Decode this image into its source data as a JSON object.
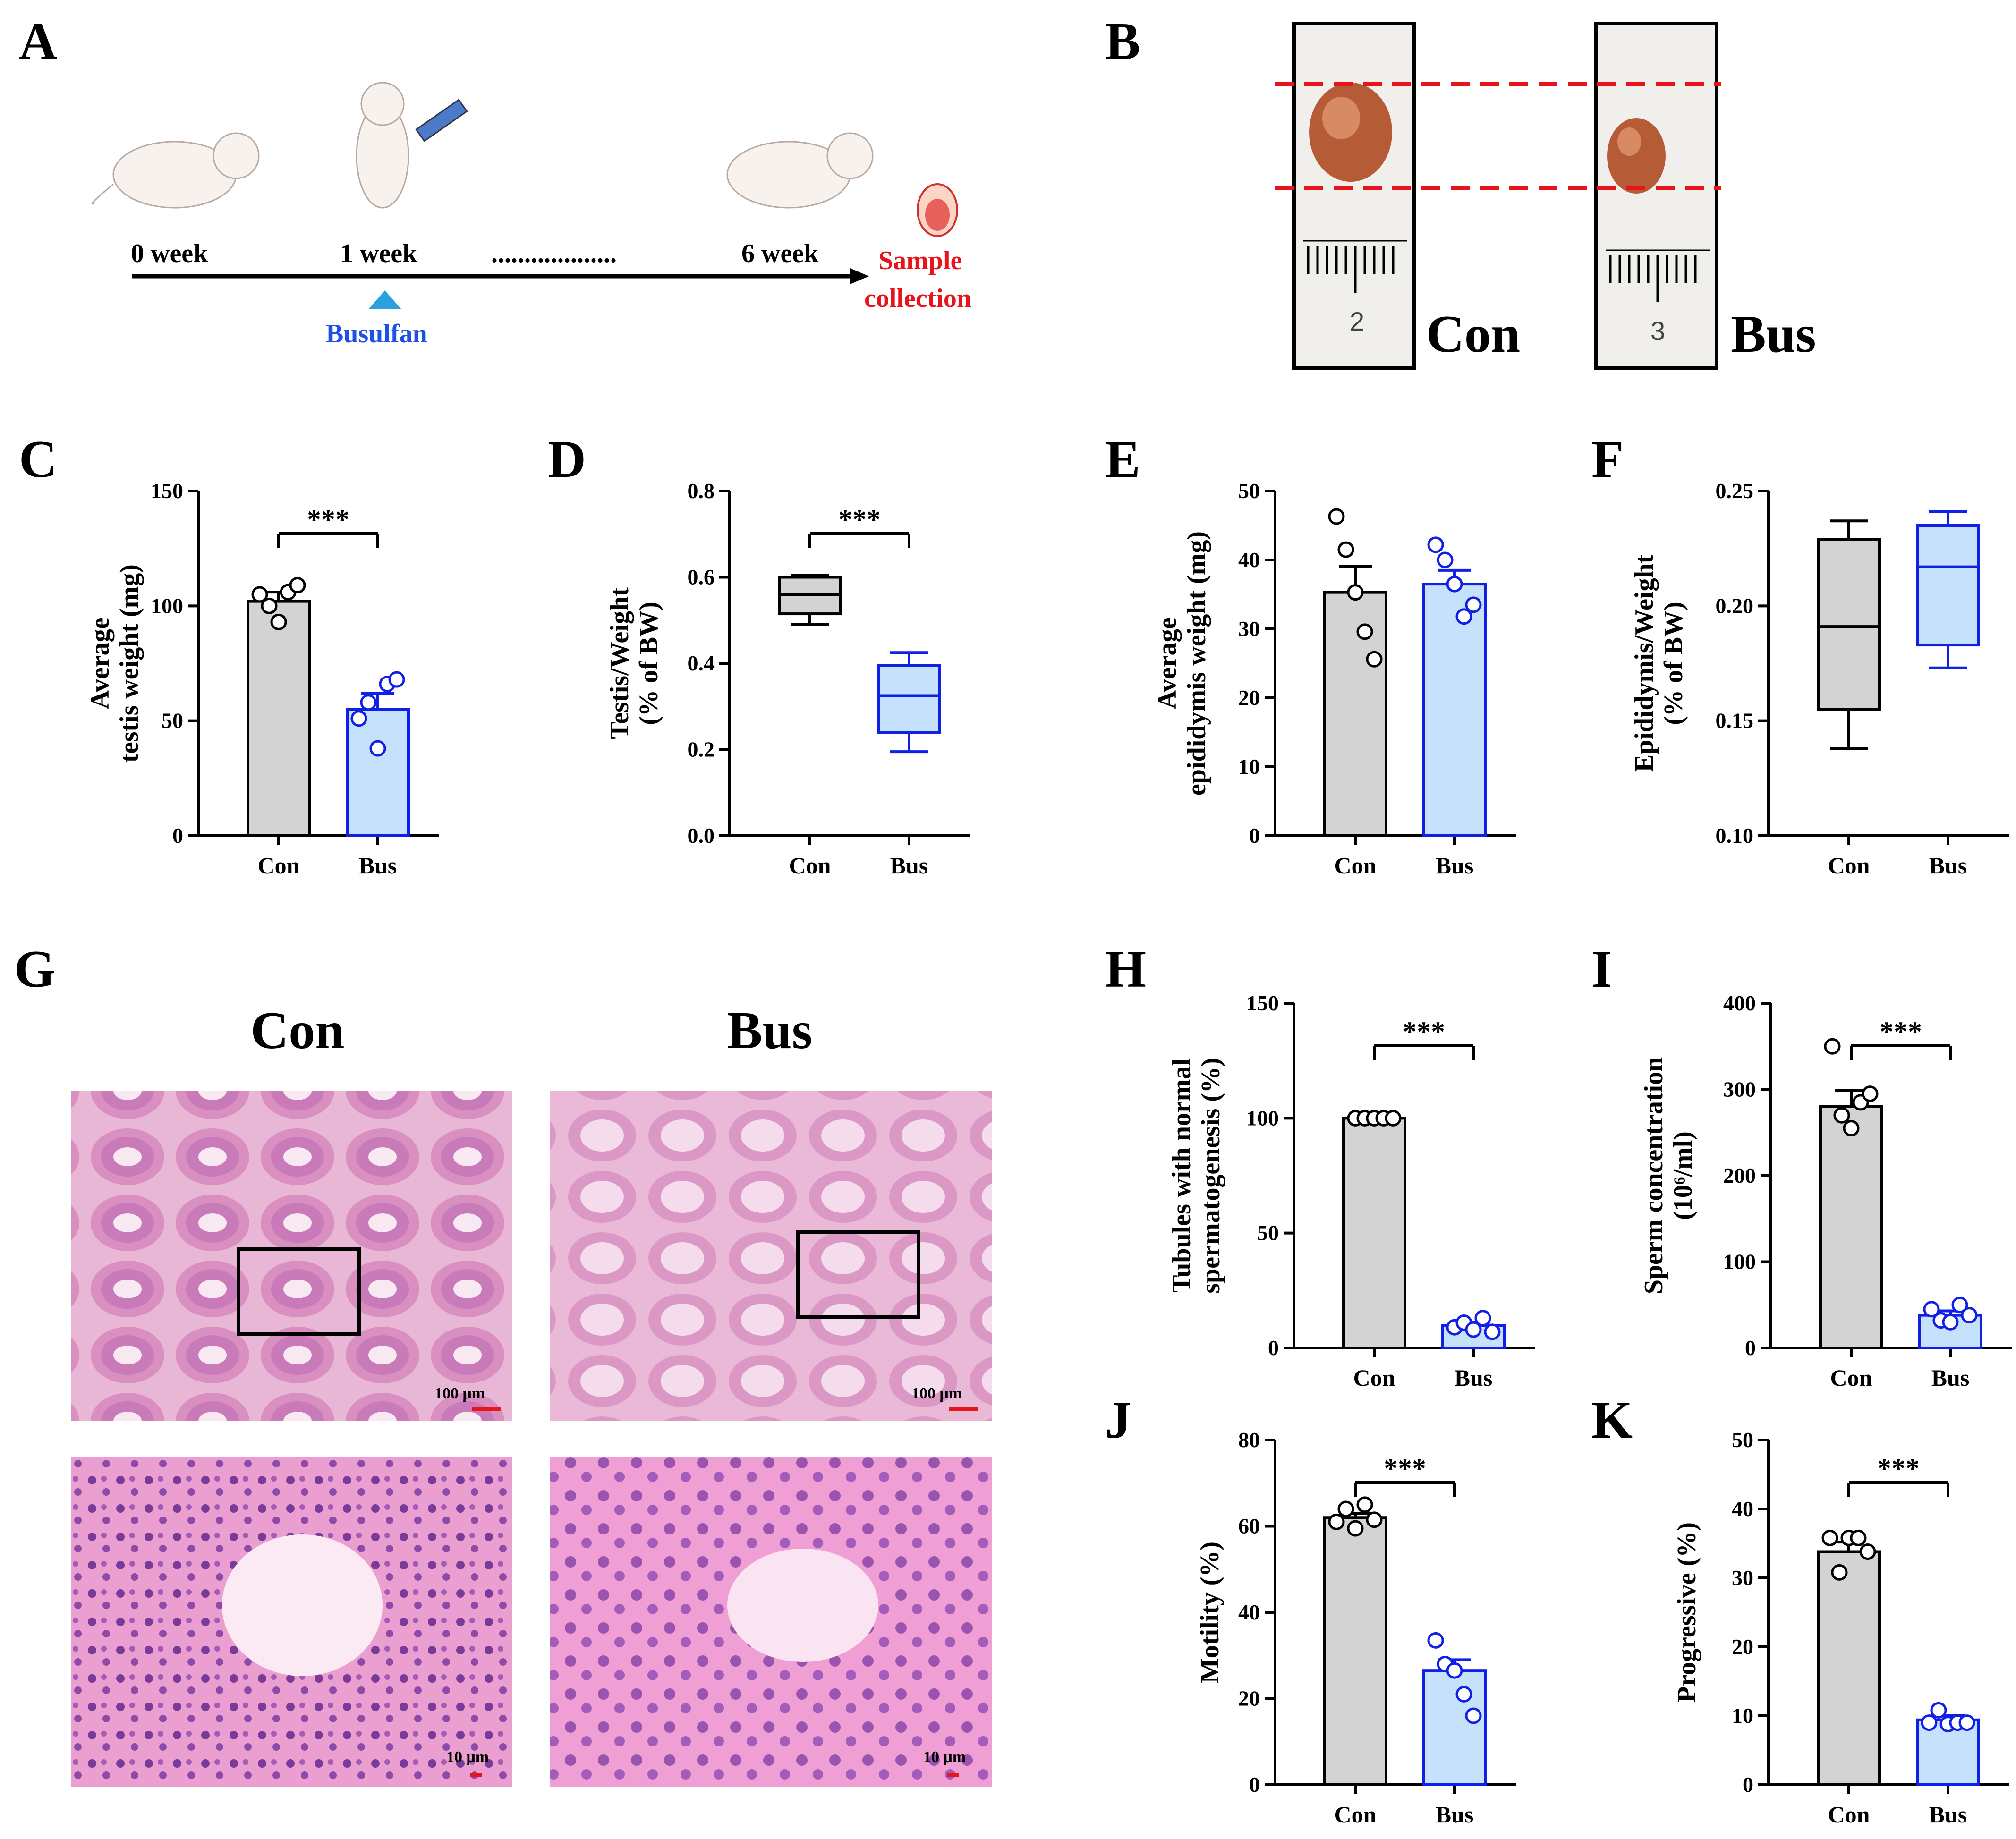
{
  "colors": {
    "con_fill": "#d3d3d3",
    "bus_fill": "#c5e1fb",
    "bus_stroke": "#1020e6",
    "axis": "#000000",
    "timeline_red": "#e8141c",
    "busulfan_blue": "#1e50e6",
    "triangle": "#2aa0dc"
  },
  "panelA": {
    "label": "A",
    "time_labels": [
      "0 week",
      "1 week",
      "6 week"
    ],
    "dots": "...................",
    "busulfan": "Busulfan",
    "sample_line1": "Sample",
    "sample_line2": "collection"
  },
  "panelB": {
    "label": "B",
    "con_label": "Con",
    "bus_label": "Bus",
    "ruler_con": "2",
    "ruler_bus": "3"
  },
  "panelG": {
    "label": "G",
    "con_title": "Con",
    "bus_title": "Bus",
    "scale_top": "100 μm",
    "scale_bottom": "10 μm"
  },
  "chart_data": [
    {
      "id": "C",
      "label": "C",
      "type": "bar",
      "ylabel_lines": [
        "Average",
        "testis weight (mg)"
      ],
      "ylim": [
        0,
        150
      ],
      "ticks": [
        0,
        50,
        100,
        150
      ],
      "categories": [
        "Con",
        "Bus"
      ],
      "values": [
        102,
        55
      ],
      "sem": [
        4,
        7
      ],
      "points": [
        [
          105,
          100,
          93,
          106,
          109
        ],
        [
          51,
          58,
          38,
          66,
          68
        ]
      ],
      "significance": "***"
    },
    {
      "id": "D",
      "label": "D",
      "type": "box",
      "ylabel_lines": [
        "Testis/Weight",
        "(% of BW)"
      ],
      "ylim": [
        0,
        0.8
      ],
      "ticks": [
        "0.0",
        "0.2",
        "0.4",
        "0.6",
        "0.8"
      ],
      "categories": [
        "Con",
        "Bus"
      ],
      "boxes": [
        {
          "min": 0.49,
          "q1": 0.515,
          "median": 0.56,
          "q3": 0.6,
          "max": 0.605
        },
        {
          "min": 0.195,
          "q1": 0.24,
          "median": 0.325,
          "q3": 0.395,
          "max": 0.425
        }
      ],
      "significance": "***"
    },
    {
      "id": "E",
      "label": "E",
      "type": "bar",
      "ylabel_lines": [
        "Average",
        "epididymis weight (mg)"
      ],
      "ylim": [
        0,
        50
      ],
      "ticks": [
        0,
        10,
        20,
        30,
        40,
        50
      ],
      "categories": [
        "Con",
        "Bus"
      ],
      "values": [
        35.3,
        36.5
      ],
      "sem": [
        3.8,
        2.0
      ],
      "points": [
        [
          46.3,
          41.5,
          35.3,
          29.6,
          25.6
        ],
        [
          42.2,
          40.0,
          36.5,
          31.8,
          33.5
        ]
      ],
      "significance": ""
    },
    {
      "id": "F",
      "label": "F",
      "type": "box",
      "ylabel_lines": [
        "Epididymis/Weight",
        "(% of BW)"
      ],
      "ylim": [
        0.1,
        0.25
      ],
      "ticks": [
        "0.10",
        "0.15",
        "0.20",
        "0.25"
      ],
      "categories": [
        "Con",
        "Bus"
      ],
      "boxes": [
        {
          "min": 0.138,
          "q1": 0.155,
          "median": 0.191,
          "q3": 0.229,
          "max": 0.237
        },
        {
          "min": 0.173,
          "q1": 0.183,
          "median": 0.217,
          "q3": 0.235,
          "max": 0.241
        }
      ],
      "significance": ""
    },
    {
      "id": "H",
      "label": "H",
      "type": "bar",
      "ylabel_lines": [
        "Tubules with normal",
        "spermatogenesis (%)"
      ],
      "ylim": [
        0,
        150
      ],
      "ticks": [
        0,
        50,
        100,
        150
      ],
      "categories": [
        "Con",
        "Bus"
      ],
      "values": [
        100,
        9.7
      ],
      "sem": [
        0,
        1.5
      ],
      "points": [
        [
          100,
          100,
          100,
          100,
          100
        ],
        [
          9,
          11,
          8,
          13,
          7
        ]
      ],
      "significance": "***"
    },
    {
      "id": "I",
      "label": "I",
      "type": "bar",
      "ylabel_lines": [
        "Sperm concentration",
        "(10⁶/ml)"
      ],
      "ylim": [
        0,
        400
      ],
      "ticks": [
        0,
        100,
        200,
        300,
        400
      ],
      "categories": [
        "Con",
        "Bus"
      ],
      "values": [
        280,
        38
      ],
      "sem": [
        19,
        5
      ],
      "points": [
        [
          350,
          270,
          255,
          285,
          295
        ],
        [
          45,
          32,
          30,
          50,
          38
        ]
      ],
      "significance": "***"
    },
    {
      "id": "J",
      "label": "J",
      "type": "bar",
      "ylabel_lines": [
        "Motility (%)"
      ],
      "ylim": [
        0,
        80
      ],
      "ticks": [
        0,
        20,
        40,
        60,
        80
      ],
      "categories": [
        "Con",
        "Bus"
      ],
      "values": [
        62,
        26.5
      ],
      "sem": [
        1,
        2.5
      ],
      "points": [
        [
          61,
          64,
          59.5,
          65,
          61.5
        ],
        [
          33.5,
          28,
          26.5,
          21,
          16
        ]
      ],
      "significance": "***"
    },
    {
      "id": "K",
      "label": "K",
      "type": "bar",
      "ylabel_lines": [
        "Progressive (%)"
      ],
      "ylim": [
        0,
        50
      ],
      "ticks": [
        0,
        10,
        20,
        30,
        40,
        50
      ],
      "categories": [
        "Con",
        "Bus"
      ],
      "values": [
        33.8,
        9.4
      ],
      "sem": [
        1.4,
        0.6
      ],
      "points": [
        [
          35.8,
          30.8,
          35.8,
          35.8,
          33.8
        ],
        [
          9.0,
          10.8,
          8.8,
          9.0,
          9.0
        ]
      ],
      "significance": "***"
    }
  ]
}
